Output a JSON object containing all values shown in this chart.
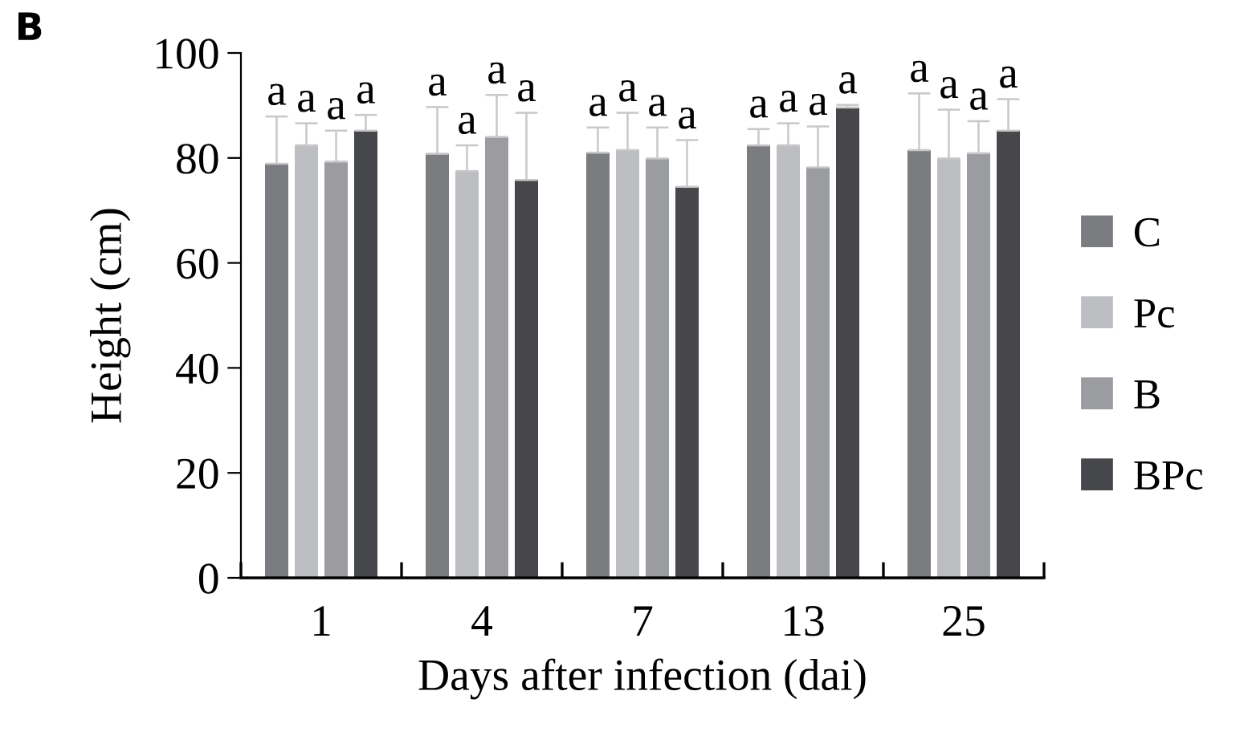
{
  "chart_data": {
    "type": "bar",
    "xlabel": "Days after infection (dai)",
    "ylabel": "Height (cm)",
    "categories": [
      "1",
      "4",
      "7",
      "13",
      "25"
    ],
    "series": [
      {
        "name": "C",
        "color": "#7b7c80",
        "values": [
          78.9,
          80.8,
          81.0,
          82.4,
          81.5
        ],
        "errors": [
          [
            78.9,
            87.9
          ],
          [
            80.8,
            89.7
          ],
          [
            81.0,
            85.8
          ],
          [
            82.4,
            85.5
          ],
          [
            81.5,
            92.3
          ]
        ]
      },
      {
        "name": "Pc",
        "color": "#bdbec2",
        "values": [
          82.4,
          77.5,
          81.5,
          82.4,
          79.9
        ],
        "errors": [
          [
            82.4,
            86.6
          ],
          [
            77.5,
            82.4
          ],
          [
            81.5,
            88.6
          ],
          [
            82.4,
            86.6
          ],
          [
            79.9,
            89.2
          ]
        ]
      },
      {
        "name": "B",
        "color": "#9b9ca0",
        "values": [
          79.3,
          84.0,
          79.9,
          78.2,
          80.9
        ],
        "errors": [
          [
            79.3,
            85.2
          ],
          [
            84.0,
            92.0
          ],
          [
            79.9,
            85.8
          ],
          [
            78.2,
            86.0
          ],
          [
            80.9,
            87.0
          ]
        ]
      },
      {
        "name": "BPc",
        "color": "#46474a",
        "values": [
          85.2,
          75.8,
          74.5,
          89.6,
          85.2
        ],
        "errors": [
          [
            85.2,
            88.2
          ],
          [
            75.8,
            88.6
          ],
          [
            74.5,
            83.4
          ],
          [
            89.6,
            90.1
          ],
          [
            85.2,
            91.2
          ]
        ]
      }
    ],
    "ylim": [
      0,
      100
    ],
    "yticks": [
      0,
      20,
      40,
      60,
      80,
      100
    ],
    "grid": false,
    "legend": "right",
    "annotations": [
      "B",
      "a",
      "a",
      "a",
      "a",
      "a",
      "a",
      "a",
      "a",
      "a",
      "a",
      "a",
      "a",
      "a",
      "a",
      "a",
      "a",
      "a",
      "a",
      "a",
      "a"
    ]
  }
}
